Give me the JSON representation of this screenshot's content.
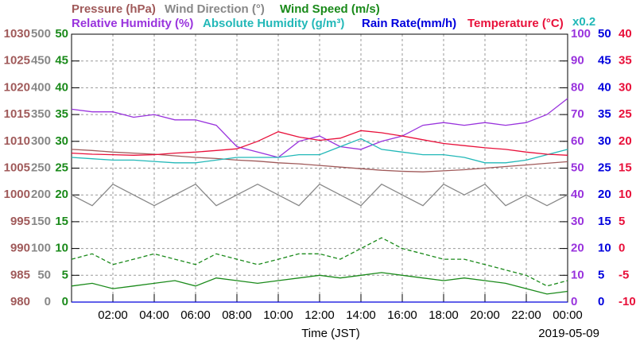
{
  "chart_data": {
    "type": "line",
    "x_label": "Time (JST)",
    "date": "2019-05-09",
    "x": [
      0,
      1,
      2,
      3,
      4,
      5,
      6,
      7,
      8,
      9,
      10,
      11,
      12,
      13,
      14,
      15,
      16,
      17,
      18,
      19,
      20,
      21,
      22,
      23,
      24
    ],
    "xlim": [
      0,
      24
    ],
    "xticks": [
      {
        "value": 2,
        "label": "02:00"
      },
      {
        "value": 4,
        "label": "04:00"
      },
      {
        "value": 6,
        "label": "06:00"
      },
      {
        "value": 8,
        "label": "08:00"
      },
      {
        "value": 10,
        "label": "10:00"
      },
      {
        "value": 12,
        "label": "12:00"
      },
      {
        "value": 14,
        "label": "14:00"
      },
      {
        "value": 16,
        "label": "16:00"
      },
      {
        "value": 18,
        "label": "18:00"
      },
      {
        "value": 20,
        "label": "20:00"
      },
      {
        "value": 22,
        "label": "22:00"
      },
      {
        "value": 24,
        "label": "00:00"
      }
    ],
    "grid": true,
    "axes": [
      {
        "side": "left",
        "color": "#a05a5a",
        "ylim": [
          980,
          1030
        ],
        "yticks": [
          980,
          985,
          990,
          995,
          1000,
          1005,
          1010,
          1015,
          1020,
          1025,
          1030
        ]
      },
      {
        "side": "left",
        "color": "#888888",
        "ylim": [
          0,
          500
        ],
        "yticks": [
          0,
          50,
          100,
          150,
          200,
          250,
          300,
          350,
          400,
          450,
          500
        ]
      },
      {
        "side": "left",
        "color": "#1a8a1a",
        "ylim": [
          0,
          50
        ],
        "yticks": [
          0,
          5,
          10,
          15,
          20,
          25,
          30,
          35,
          40,
          45,
          50
        ]
      },
      {
        "side": "right",
        "color": "#9933dd",
        "ylim": [
          0,
          100
        ],
        "yticks": [
          0,
          10,
          20,
          30,
          40,
          50,
          60,
          70,
          80,
          90,
          100
        ]
      },
      {
        "side": "right",
        "color": "#0000dd",
        "ylim": [
          0,
          50
        ],
        "yticks": [
          0,
          5,
          10,
          15,
          20,
          25,
          30,
          35,
          40,
          45,
          50
        ]
      },
      {
        "side": "right",
        "color": "#e8103a",
        "ylim": [
          -10,
          40
        ],
        "yticks": [
          -10,
          -5,
          0,
          5,
          10,
          15,
          20,
          25,
          30,
          35,
          40
        ]
      }
    ],
    "series": [
      {
        "name": "Pressure (hPa)",
        "color": "#a05a5a",
        "axis": 0,
        "values": [
          1008.5,
          1008.3,
          1008,
          1007.8,
          1007.6,
          1007.3,
          1007,
          1006.8,
          1006.5,
          1006.3,
          1006,
          1005.8,
          1005.5,
          1005.2,
          1004.9,
          1004.6,
          1004.4,
          1004.3,
          1004.5,
          1004.7,
          1005,
          1005.3,
          1005.6,
          1005.9,
          1006.2
        ]
      },
      {
        "name": "Wind Direction (°)",
        "color": "#888888",
        "axis": 1,
        "values": [
          200,
          180,
          220,
          200,
          180,
          200,
          220,
          180,
          200,
          220,
          200,
          180,
          220,
          200,
          180,
          220,
          200,
          180,
          220,
          200,
          220,
          180,
          200,
          180,
          200
        ]
      },
      {
        "name": "Wind Speed (m/s)",
        "color": "#1a8a1a",
        "axis": 2,
        "values": [
          3,
          3.5,
          2.5,
          3,
          3.5,
          4,
          3,
          4.5,
          4,
          3.5,
          4,
          4.5,
          5,
          4.5,
          5,
          5.5,
          5,
          4.5,
          4,
          4.5,
          4,
          3.5,
          2.5,
          1.5,
          2
        ]
      },
      {
        "color": "#1a8a1a",
        "axis": 2,
        "dashed": true,
        "values": [
          8,
          9,
          7,
          8,
          9,
          8,
          7,
          9,
          8,
          7,
          8,
          9,
          9,
          8,
          10,
          12,
          10,
          9,
          8,
          8,
          7,
          6,
          5,
          3,
          4
        ]
      },
      {
        "name": "Relative Humidity (%)",
        "color": "#9933dd",
        "axis": 3,
        "values": [
          72,
          71,
          71,
          69,
          70,
          68,
          68,
          66,
          58,
          56,
          54,
          60,
          62,
          58,
          57,
          60,
          62,
          66,
          67,
          66,
          67,
          66,
          67,
          70,
          76
        ]
      },
      {
        "name": "Absolute Humidity (g/m³)",
        "color": "#22b8b8",
        "axis": 3,
        "scale": {
          "value": 0.2,
          "label": "x0.2"
        },
        "values": [
          10.8,
          10.7,
          10.6,
          10.6,
          10.5,
          10.4,
          10.4,
          10.6,
          10.8,
          10.8,
          10.8,
          11,
          11,
          11.6,
          12.2,
          11.4,
          11.2,
          11,
          11,
          10.8,
          10.4,
          10.4,
          10.6,
          11,
          11.4
        ]
      },
      {
        "name": "Rain Rate(mm/h)",
        "color": "#0000dd",
        "axis": 4,
        "values": [
          0,
          0,
          0,
          0,
          0,
          0,
          0,
          0,
          0,
          0,
          0,
          0,
          0,
          0,
          0,
          0,
          0,
          0,
          0,
          0,
          0,
          0,
          0,
          0,
          0
        ]
      },
      {
        "name": "Temperature (°C)",
        "color": "#e8103a",
        "axis": 5,
        "values": [
          17.8,
          17.6,
          17.5,
          17.4,
          17.5,
          17.8,
          18,
          18.3,
          18.6,
          20,
          21.8,
          20.8,
          20.2,
          20.6,
          22,
          21.6,
          21,
          20.3,
          19.6,
          19.2,
          18.8,
          18.5,
          18,
          17.6,
          17.4
        ]
      }
    ]
  }
}
